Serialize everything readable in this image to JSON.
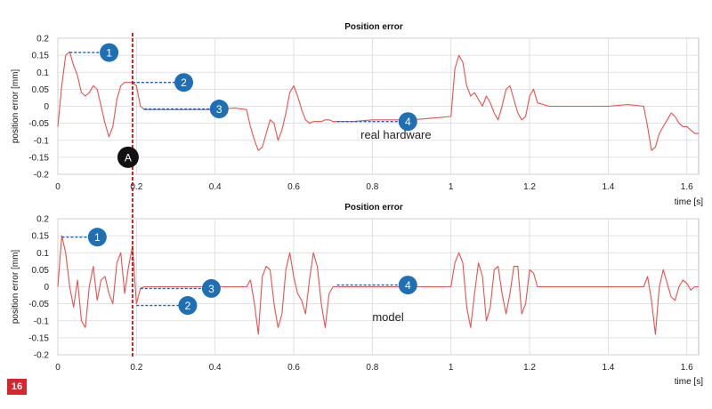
{
  "figure_number": "16",
  "colors": {
    "curve": "#e8514f",
    "marker_fill": "#1f6fb5",
    "marker_text": "#ffffff",
    "guide_line": "#1f5fb0",
    "cursor_line": "#c0141c",
    "cursor_marker": "#111111",
    "grid": "#d9d9d9",
    "badge": "#d8262e"
  },
  "cursor": {
    "label": "A",
    "x": 0.19,
    "y": -0.15
  },
  "chart_data": [
    {
      "type": "line",
      "title": "Position error",
      "xlabel": "time [s]",
      "ylabel": "position error [mm]",
      "annotation": "real hardware",
      "annotation_at": {
        "x": 0.86,
        "y": -0.095
      },
      "xlim": [
        0,
        1.63
      ],
      "ylim": [
        -0.2,
        0.2
      ],
      "xticks": [
        "0",
        "0.2",
        "0.4",
        "0.6",
        "0.8",
        "1",
        "1.2",
        "1.4",
        "1.6"
      ],
      "yticks": [
        "0.2",
        "0.15",
        "0.1",
        "0.05",
        "0",
        "-0.05",
        "-0.1",
        "-0.15",
        "-0.2"
      ],
      "grid": true,
      "series": [
        {
          "x": [
            0,
            0.01,
            0.02,
            0.03,
            0.04,
            0.05,
            0.06,
            0.07,
            0.08,
            0.09,
            0.1,
            0.11,
            0.12,
            0.13,
            0.14,
            0.15,
            0.16,
            0.17,
            0.18,
            0.19,
            0.2,
            0.21,
            0.22,
            0.25,
            0.3,
            0.35,
            0.4,
            0.45,
            0.48,
            0.49,
            0.5,
            0.51,
            0.52,
            0.53,
            0.54,
            0.55,
            0.56,
            0.57,
            0.58,
            0.59,
            0.6,
            0.61,
            0.62,
            0.63,
            0.64,
            0.65,
            0.66,
            0.67,
            0.68,
            0.69,
            0.7,
            0.75,
            0.8,
            0.85,
            0.9,
            0.95,
            1.0,
            1.01,
            1.02,
            1.03,
            1.04,
            1.05,
            1.06,
            1.07,
            1.08,
            1.09,
            1.1,
            1.11,
            1.12,
            1.13,
            1.14,
            1.15,
            1.16,
            1.17,
            1.18,
            1.19,
            1.2,
            1.21,
            1.22,
            1.25,
            1.3,
            1.35,
            1.4,
            1.45,
            1.49,
            1.5,
            1.51,
            1.52,
            1.53,
            1.54,
            1.55,
            1.56,
            1.57,
            1.58,
            1.59,
            1.6,
            1.61,
            1.62,
            1.63
          ],
          "y": [
            -0.06,
            0.06,
            0.15,
            0.16,
            0.12,
            0.09,
            0.04,
            0.03,
            0.04,
            0.06,
            0.05,
            0.0,
            -0.05,
            -0.09,
            -0.06,
            0.02,
            0.06,
            0.07,
            0.07,
            0.07,
            0.06,
            0.0,
            -0.01,
            -0.01,
            -0.01,
            -0.01,
            -0.01,
            -0.005,
            -0.01,
            -0.06,
            -0.1,
            -0.13,
            -0.12,
            -0.08,
            -0.04,
            -0.05,
            -0.1,
            -0.07,
            -0.02,
            0.04,
            0.06,
            0.03,
            -0.01,
            -0.04,
            -0.05,
            -0.045,
            -0.045,
            -0.045,
            -0.04,
            -0.04,
            -0.045,
            -0.045,
            -0.04,
            -0.04,
            -0.04,
            -0.035,
            -0.03,
            0.11,
            0.15,
            0.13,
            0.06,
            0.03,
            0.04,
            0.02,
            0.0,
            0.03,
            0.01,
            -0.02,
            -0.04,
            0.0,
            0.05,
            0.06,
            0.02,
            -0.02,
            -0.04,
            -0.03,
            0.03,
            0.05,
            0.01,
            0.0,
            0.0,
            0.0,
            0.0,
            0.005,
            0.0,
            -0.06,
            -0.13,
            -0.12,
            -0.08,
            -0.06,
            -0.04,
            -0.02,
            -0.03,
            -0.05,
            -0.06,
            -0.06,
            -0.07,
            -0.08,
            -0.08
          ]
        }
      ],
      "callouts": [
        {
          "label": "1",
          "x_start": 0.03,
          "x_end": 0.11,
          "y": 0.158
        },
        {
          "label": "2",
          "x_start": 0.19,
          "x_end": 0.3,
          "y": 0.07
        },
        {
          "label": "3",
          "x_start": 0.22,
          "x_end": 0.39,
          "y": -0.008
        },
        {
          "label": "4",
          "x_start": 0.71,
          "x_end": 0.87,
          "y": -0.045
        }
      ]
    },
    {
      "type": "line",
      "title": "Position error",
      "xlabel": "time [s]",
      "ylabel": "position error [mm]",
      "annotation": "model",
      "annotation_at": {
        "x": 0.84,
        "y": -0.1
      },
      "xlim": [
        0,
        1.63
      ],
      "ylim": [
        -0.2,
        0.2
      ],
      "xticks": [
        "0",
        "0.2",
        "0.4",
        "0.6",
        "0.8",
        "1",
        "1.2",
        "1.4",
        "1.6"
      ],
      "yticks": [
        "0.2",
        "0.15",
        "0.1",
        "0.05",
        "0",
        "-0.05",
        "-0.1",
        "-0.15",
        "-0.2"
      ],
      "grid": true,
      "series": [
        {
          "x": [
            0,
            0.01,
            0.02,
            0.03,
            0.04,
            0.05,
            0.06,
            0.07,
            0.08,
            0.09,
            0.1,
            0.11,
            0.12,
            0.13,
            0.14,
            0.15,
            0.16,
            0.17,
            0.18,
            0.19,
            0.2,
            0.21,
            0.22,
            0.25,
            0.3,
            0.35,
            0.4,
            0.45,
            0.48,
            0.49,
            0.5,
            0.51,
            0.52,
            0.53,
            0.54,
            0.55,
            0.56,
            0.57,
            0.58,
            0.59,
            0.6,
            0.61,
            0.62,
            0.63,
            0.64,
            0.65,
            0.66,
            0.67,
            0.68,
            0.69,
            0.7,
            0.75,
            0.8,
            0.85,
            0.9,
            0.95,
            1.0,
            1.01,
            1.02,
            1.03,
            1.04,
            1.05,
            1.06,
            1.07,
            1.08,
            1.09,
            1.1,
            1.11,
            1.12,
            1.13,
            1.14,
            1.15,
            1.16,
            1.17,
            1.18,
            1.19,
            1.2,
            1.21,
            1.22,
            1.25,
            1.3,
            1.35,
            1.4,
            1.45,
            1.49,
            1.5,
            1.51,
            1.52,
            1.53,
            1.54,
            1.55,
            1.56,
            1.57,
            1.58,
            1.59,
            1.6,
            1.61,
            1.62,
            1.63
          ],
          "y": [
            0.0,
            0.15,
            0.1,
            0.0,
            -0.06,
            0.02,
            -0.1,
            -0.12,
            0.0,
            0.06,
            -0.04,
            0.02,
            0.03,
            -0.02,
            -0.05,
            0.07,
            0.1,
            -0.02,
            0.06,
            0.12,
            -0.05,
            -0.005,
            0.0,
            0.0,
            0.0,
            0.0,
            0.0,
            0.0,
            0.0,
            0.02,
            -0.05,
            -0.14,
            0.03,
            0.06,
            0.05,
            -0.05,
            -0.12,
            -0.08,
            0.05,
            0.1,
            0.03,
            -0.02,
            -0.04,
            -0.08,
            0.02,
            0.1,
            0.06,
            -0.05,
            -0.12,
            -0.02,
            0.0,
            0.0,
            0.0,
            0.0,
            0.0,
            0.0,
            0.0,
            0.07,
            0.1,
            0.07,
            -0.06,
            -0.12,
            -0.02,
            0.07,
            0.03,
            -0.1,
            -0.06,
            0.05,
            0.06,
            -0.02,
            -0.08,
            -0.02,
            0.06,
            0.06,
            -0.08,
            -0.05,
            0.05,
            0.04,
            0.0,
            0.0,
            0.0,
            0.0,
            0.0,
            0.0,
            0.0,
            0.03,
            -0.04,
            -0.14,
            0.0,
            0.05,
            0.01,
            -0.03,
            -0.04,
            0.0,
            0.02,
            0.01,
            -0.01,
            0.0,
            0.0
          ]
        }
      ],
      "callouts": [
        {
          "label": "1",
          "x_start": 0.01,
          "x_end": 0.08,
          "y": 0.146
        },
        {
          "label": "2",
          "x_start": 0.2,
          "x_end": 0.31,
          "y": -0.055
        },
        {
          "label": "3",
          "x_start": 0.21,
          "x_end": 0.37,
          "y": -0.005
        },
        {
          "label": "4",
          "x_start": 0.71,
          "x_end": 0.87,
          "y": 0.005
        }
      ]
    }
  ]
}
